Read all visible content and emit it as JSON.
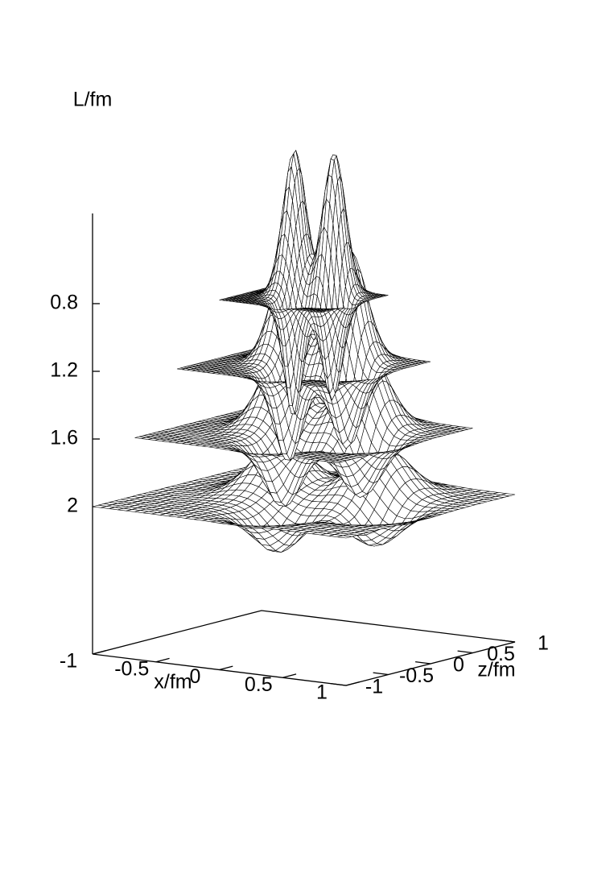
{
  "chart_data": {
    "type": "surface3d",
    "zlabel": "L/fm",
    "xlabel": "x/fm",
    "ylabel": "z/fm",
    "zlim": [
      0.267,
      2.871
    ],
    "zticks": [
      0.8,
      1.2,
      1.6,
      2
    ],
    "xlim": [
      -1,
      1
    ],
    "xticks": [
      -1,
      -0.5,
      0,
      0.5,
      1
    ],
    "ylim": [
      -1,
      1
    ],
    "yticks": [
      -1,
      -0.5,
      0,
      0.5,
      1
    ],
    "layers": [
      2,
      1.6,
      1.2,
      0.8
    ],
    "color": "#000000"
  }
}
